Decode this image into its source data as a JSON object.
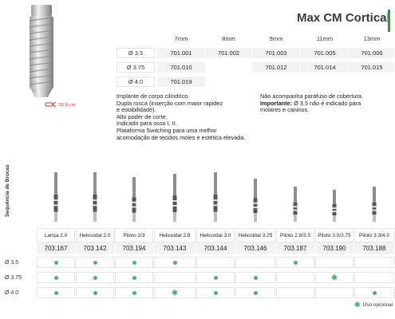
{
  "title": "Max CM Cortical",
  "torque_label": "55 N.cm",
  "size_table": {
    "headers": [
      "7mm",
      "8mm",
      "9mm",
      "11mm",
      "13mm"
    ],
    "rows": [
      {
        "label": "Ø 3.5",
        "codes": [
          "701.001",
          "701.002",
          "701.003",
          "701.005",
          "701.006"
        ]
      },
      {
        "label": "Ø 3.75",
        "codes": [
          "701.010",
          "",
          "701.012",
          "701.014",
          "701.015"
        ]
      },
      {
        "label": "Ø 4.0",
        "codes": [
          "701.019",
          "",
          "",
          "",
          ""
        ]
      }
    ]
  },
  "description": [
    "Implante de corpo cilíndrico.",
    "Dupla rosca (inserção com maior rapidez",
    "e estabilidade).",
    "Alto poder de corte.",
    "Indicado para osso I, II.",
    "Plataforma Switching para uma melhor",
    "acomodação de tecidos moles e estética elevada."
  ],
  "note": {
    "line1": "Não acompanha parafuso de cobertura.",
    "important_label": "Importante:",
    "important_text": " Ø 3.5 não é indicado para",
    "line3": "molares e caninos."
  },
  "side_label": "Sequência de Brocas",
  "drills": [
    {
      "name": "Lança 2.0",
      "code": "703.167"
    },
    {
      "name": "Helicoidal 2.0",
      "code": "703.142"
    },
    {
      "name": "Piloto 2/3",
      "code": "703.194"
    },
    {
      "name": "Helicoidal 2.8",
      "code": "703.143"
    },
    {
      "name": "Helicoidal 3.0",
      "code": "703.144"
    },
    {
      "name": "Helicoidal 3.25",
      "code": "703.146"
    },
    {
      "name": "Piloto 2.8/3.5",
      "code": "703.187"
    },
    {
      "name": "Piloto 3.0/3.75",
      "code": "703.190"
    },
    {
      "name": "Piloto 3.3/4.0",
      "code": "703.188"
    }
  ],
  "usage": [
    {
      "label": "Ø 3.5",
      "marks": [
        "dot",
        "dot",
        "dot",
        "dot",
        "",
        "",
        "dot",
        "",
        ""
      ]
    },
    {
      "label": "Ø 3.75",
      "marks": [
        "dot",
        "dot",
        "dot",
        "",
        "dot",
        "dot",
        "",
        "star",
        ""
      ]
    },
    {
      "label": "Ø 4.0",
      "marks": [
        "dot",
        "dot",
        "dot",
        "star",
        "dot",
        "dot",
        "",
        "",
        "dot"
      ]
    }
  ],
  "legend": "Uso opcional",
  "colors": {
    "accent_green": "#4caf72",
    "title_bar": "#3c8c4a",
    "torque_red": "#c0392b"
  }
}
